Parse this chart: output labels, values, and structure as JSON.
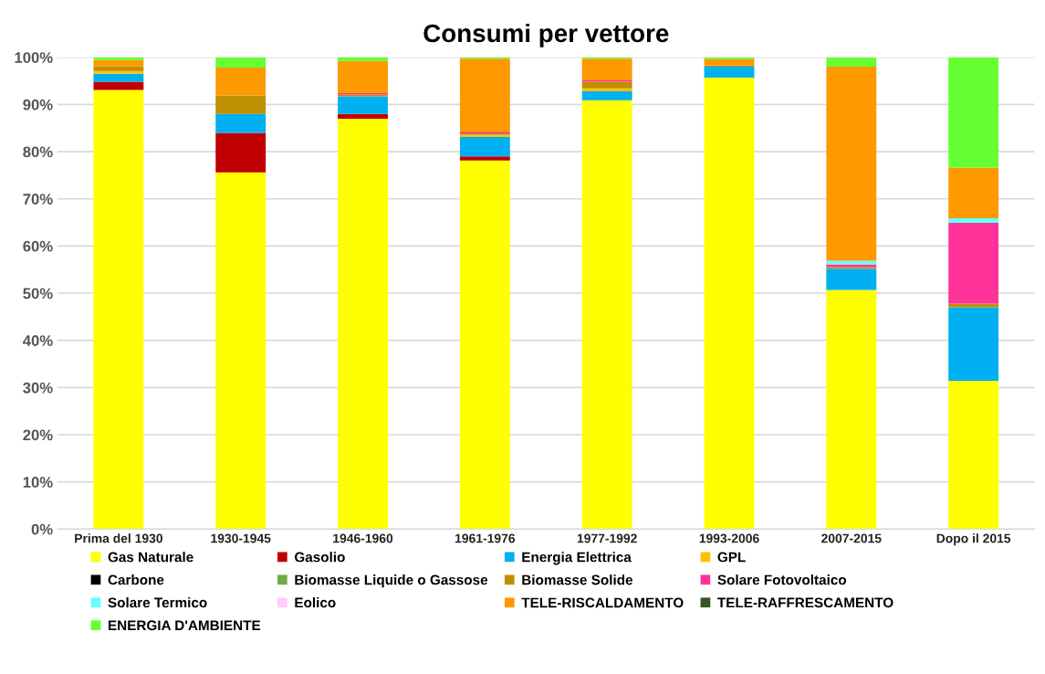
{
  "chart_data": {
    "type": "bar",
    "stacked": true,
    "title": "Consumi per vettore",
    "categories": [
      "Prima del 1930",
      "1930-1945",
      "1946-1960",
      "1961-1976",
      "1977-1992",
      "1993-2006",
      "2007-2015",
      "Dopo il 2015"
    ],
    "series": [
      {
        "name": "Gas Naturale",
        "color": "#ffff00",
        "values": [
          93.1,
          75.6,
          87.0,
          78.1,
          90.9,
          95.7,
          50.7,
          31.4
        ]
      },
      {
        "name": "Gasolio",
        "color": "#c00000",
        "values": [
          1.7,
          8.4,
          1.0,
          0.9,
          0,
          0,
          0,
          0
        ]
      },
      {
        "name": "Energia Elettrica",
        "color": "#00b0f0",
        "values": [
          1.7,
          4.0,
          3.7,
          4.1,
          1.9,
          2.3,
          4.5,
          15.6
        ]
      },
      {
        "name": "GPL",
        "color": "#ffc000",
        "values": [
          0.6,
          0,
          0,
          0.5,
          0.6,
          0,
          0,
          0
        ]
      },
      {
        "name": "Carbone",
        "color": "#000000",
        "values": [
          0,
          0,
          0,
          0,
          0,
          0,
          0,
          0
        ]
      },
      {
        "name": "Biomasse Liquide o Gassose",
        "color": "#70ad47",
        "values": [
          0,
          0,
          0,
          0,
          0,
          0,
          0,
          0
        ]
      },
      {
        "name": "Biomasse Solide",
        "color": "#bf9000",
        "values": [
          1.0,
          3.9,
          0.4,
          0.3,
          1.4,
          0.3,
          0.3,
          0.8
        ]
      },
      {
        "name": "Solare Fotovoltaico",
        "color": "#ff3399",
        "values": [
          0,
          0,
          0.3,
          0.3,
          0.3,
          0,
          0.6,
          17.1
        ]
      },
      {
        "name": "Solare Termico",
        "color": "#66ffff",
        "values": [
          0,
          0,
          0,
          0,
          0,
          0,
          0.8,
          1.0
        ]
      },
      {
        "name": "Eolico",
        "color": "#ffccff",
        "values": [
          0,
          0,
          0,
          0,
          0,
          0,
          0,
          0
        ]
      },
      {
        "name": "TELE-RISCALDAMENTO",
        "color": "#ff9900",
        "values": [
          1.3,
          5.9,
          6.8,
          15.5,
          4.6,
          1.3,
          41.1,
          10.7
        ]
      },
      {
        "name": "TELE-RAFFRESCAMENTO",
        "color": "#375623",
        "values": [
          0,
          0,
          0,
          0,
          0,
          0,
          0,
          0
        ]
      },
      {
        "name": "ENERGIA D'AMBIENTE",
        "color": "#66ff33",
        "values": [
          0.6,
          2.2,
          0.8,
          0.3,
          0.3,
          0.4,
          2.0,
          23.4
        ]
      }
    ],
    "ylim": [
      0,
      100
    ],
    "yticks": [
      {
        "value": 0,
        "label": "0%"
      },
      {
        "value": 10,
        "label": "10%"
      },
      {
        "value": 20,
        "label": "20%"
      },
      {
        "value": 30,
        "label": "30%"
      },
      {
        "value": 40,
        "label": "40%"
      },
      {
        "value": 50,
        "label": "50%"
      },
      {
        "value": 60,
        "label": "60%"
      },
      {
        "value": 70,
        "label": "70%"
      },
      {
        "value": 80,
        "label": "80%"
      },
      {
        "value": 90,
        "label": "90%"
      },
      {
        "value": 100,
        "label": "100%"
      }
    ],
    "grid": "y",
    "legend": "bottom"
  }
}
